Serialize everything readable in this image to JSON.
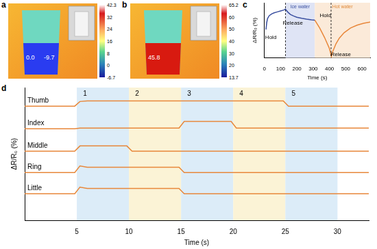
{
  "images": [
    {
      "panel": "a",
      "color": "#2a3cf0",
      "spot_labels": [
        "0.0",
        "-9.7"
      ],
      "colorbar_ticks": [
        "42.3",
        "32",
        "24",
        "16",
        "8",
        "0",
        "-6.7"
      ]
    },
    {
      "panel": "b",
      "color": "#d81a10",
      "spot_labels": [
        "45.8"
      ],
      "colorbar_ticks": [
        "65.2",
        "60",
        "50",
        "40",
        "30",
        "20",
        "13.7"
      ]
    }
  ],
  "chart_data": [
    {
      "panel": "c",
      "type": "line",
      "x_label": "Time (s)",
      "y_label": "ΔR/R₀ (%)",
      "xlim": [
        0,
        650
      ],
      "xticks": [
        0,
        100,
        200,
        300,
        400,
        500,
        600
      ],
      "ylim": [
        -20,
        15
      ],
      "tick_labels": "x",
      "grid": false,
      "regions": [
        {
          "start": 130,
          "end": 310,
          "color": "#dfe4f5",
          "label": "Ice water",
          "label_color": "#3a4fa0"
        },
        {
          "start": 310,
          "end": 650,
          "color": "#fbead9",
          "label": "Hot water",
          "label_color": "#e08a3a"
        }
      ],
      "vlines": [
        130,
        410
      ],
      "annotations": [
        {
          "text": "Hold",
          "x": 40,
          "y": -7
        },
        {
          "text": "Release",
          "x": 175,
          "y": 2
        },
        {
          "text": "Hold",
          "x": 375,
          "y": 7
        },
        {
          "text": "Release",
          "x": 470,
          "y": -18
        }
      ],
      "series": [
        {
          "color": "#3a4fa0",
          "x": [
            10,
            15,
            20,
            30,
            45,
            60,
            80,
            100,
            120,
            130,
            135,
            145,
            160,
            180,
            200,
            230,
            260,
            290,
            310
          ],
          "values": [
            -2,
            2.5,
            5,
            6.8,
            7.9,
            8.6,
            9.2,
            9.8,
            10.4,
            11,
            10.2,
            9,
            7.6,
            6.6,
            5.8,
            5.1,
            4.6,
            4.2,
            4
          ]
        },
        {
          "color": "#e8873a",
          "x": [
            310,
            340,
            370,
            400,
            412,
            420,
            440,
            460,
            490,
            530,
            570,
            610,
            650
          ],
          "values": [
            4,
            -1,
            -7,
            -14,
            -19,
            -16,
            -11,
            -7.5,
            -4,
            -1,
            0.8,
            2,
            2.8
          ]
        }
      ]
    },
    {
      "panel": "d",
      "type": "line",
      "x_label": "Time (s)",
      "y_label": "ΔR/R₀ (%)",
      "xlim": [
        0,
        33
      ],
      "xticks": [
        5,
        10,
        15,
        20,
        25,
        30
      ],
      "ylim": [
        0,
        10
      ],
      "tick_labels": "x",
      "grid": false,
      "regions": [
        {
          "start": 5,
          "end": 10,
          "color": "#dcecf8",
          "label": "1"
        },
        {
          "start": 10,
          "end": 15,
          "color": "#fbf3d6",
          "label": "2"
        },
        {
          "start": 15,
          "end": 20,
          "color": "#dcecf8",
          "label": "3"
        },
        {
          "start": 20,
          "end": 25,
          "color": "#fbf3d6",
          "label": "4"
        },
        {
          "start": 25,
          "end": 30,
          "color": "#dcecf8",
          "label": "5"
        }
      ],
      "x": [
        0,
        4.8,
        5.3,
        6,
        9.8,
        10.3,
        14.8,
        15.3,
        19.8,
        20.3,
        24.8,
        25.3,
        33
      ],
      "series": [
        {
          "name": "Thumb",
          "color": "#e8873a",
          "values": [
            8.6,
            8.6,
            8.95,
            9,
            9,
            9,
            9,
            9,
            9,
            9,
            9,
            8.6,
            8.6
          ]
        },
        {
          "name": "Index",
          "color": "#e8873a",
          "values": [
            6.9,
            6.9,
            6.95,
            6.95,
            6.95,
            6.95,
            6.95,
            7.45,
            7.45,
            6.95,
            6.95,
            6.95,
            6.95
          ]
        },
        {
          "name": "Middle",
          "color": "#e8873a",
          "values": [
            5.2,
            5.2,
            5.6,
            5.6,
            5.6,
            5.2,
            5.2,
            5.2,
            5.2,
            5.2,
            5.2,
            5.2,
            5.2
          ]
        },
        {
          "name": "Ring",
          "color": "#e8873a",
          "values": [
            3.6,
            3.6,
            4.1,
            4,
            4,
            4,
            4,
            3.6,
            3.6,
            3.6,
            3.6,
            3.6,
            3.6
          ]
        },
        {
          "name": "Little",
          "color": "#e8873a",
          "values": [
            2,
            2,
            2.5,
            2.4,
            2.4,
            2.4,
            2.4,
            2,
            2,
            2,
            2,
            2,
            2
          ]
        }
      ]
    }
  ]
}
